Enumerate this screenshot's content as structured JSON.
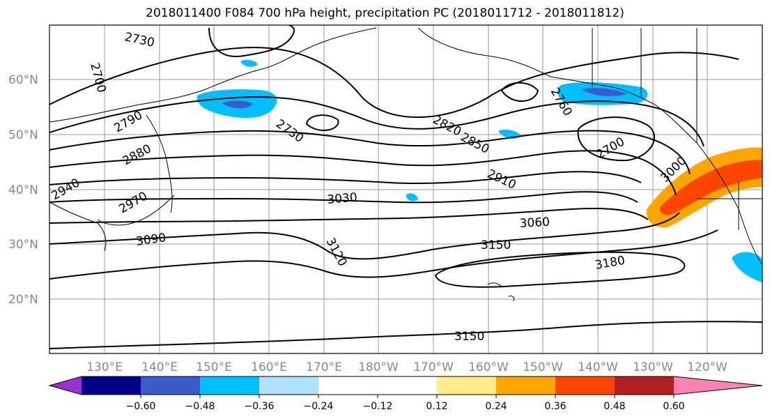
{
  "title": "2018011400 F084 700 hPa height, precipitation PC (2018011712 - 2018011812)",
  "lat_labels": [
    "60°N",
    "50°N",
    "40°N",
    "30°N",
    "20°N"
  ],
  "lon_labels": [
    "130°E",
    "140°E",
    "150°E",
    "160°E",
    "170°E",
    "180°W",
    "170°W",
    "160°W",
    "150°W",
    "140°W",
    "130°W",
    "120°W"
  ],
  "contour_labels": [
    "2700",
    "2730",
    "2760",
    "2790",
    "2820",
    "2850",
    "2880",
    "2910",
    "2940",
    "2970",
    "3000",
    "3030",
    "3060",
    "3090",
    "3120",
    "3150",
    "3180"
  ],
  "colorbar": {
    "tick_labels": [
      "−0.60",
      "−0.48",
      "−0.36",
      "−0.24",
      "−0.12",
      "0.12",
      "0.24",
      "0.36",
      "0.48",
      "0.60"
    ],
    "colors": [
      "#9b30d0",
      "#00008b",
      "#3a5bcc",
      "#00bfff",
      "#b0e2ff",
      "#ffffff",
      "#ffec8b",
      "#ffa500",
      "#ff4500",
      "#b22222",
      "#ff82b4"
    ]
  }
}
